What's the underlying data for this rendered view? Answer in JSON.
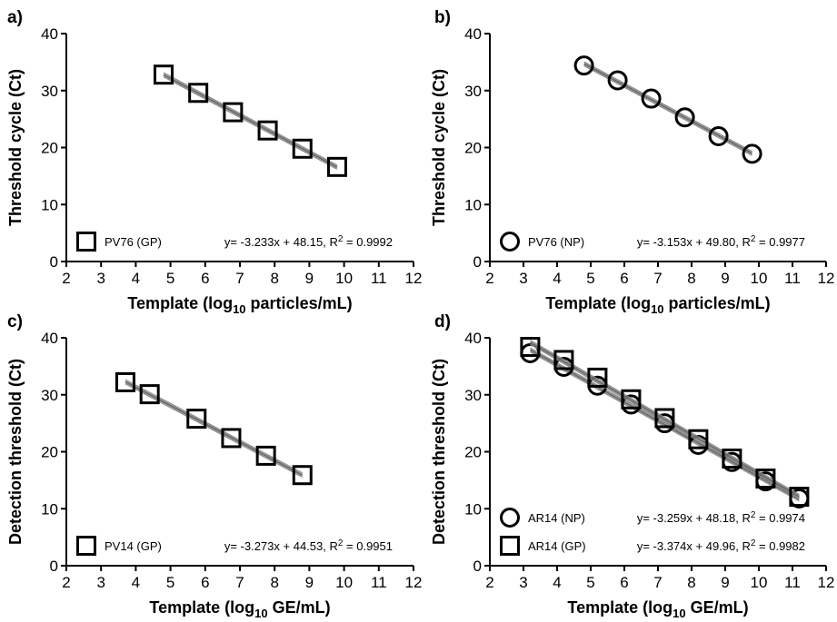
{
  "chart_data": [
    {
      "panel": "a)",
      "type": "scatter",
      "xlabel": "Template (log",
      "xlabel_sub": "10",
      "xlabel_tail": " particles/mL)",
      "ylabel": "Threshold cycle (Ct)",
      "xlim": [
        2,
        12
      ],
      "ylim": [
        0,
        40
      ],
      "x_ticks": [
        2,
        3,
        4,
        5,
        6,
        7,
        8,
        9,
        10,
        11,
        12
      ],
      "y_ticks": [
        0,
        10,
        20,
        30,
        40
      ],
      "series": [
        {
          "name": "PV76 (GP)",
          "marker": "square",
          "equation": "y= -3.233x + 48.15, R",
          "r2_value": " = 0.9992",
          "x": [
            4.8,
            5.8,
            6.8,
            7.8,
            8.8,
            9.8
          ],
          "y": [
            32.8,
            29.6,
            26.2,
            23.0,
            19.8,
            16.6
          ]
        }
      ]
    },
    {
      "panel": "b)",
      "type": "scatter",
      "xlabel": "Template (log",
      "xlabel_sub": "10",
      "xlabel_tail": " particles/mL)",
      "ylabel": "Threshold cycle (Ct)",
      "xlim": [
        2,
        12
      ],
      "ylim": [
        0,
        40
      ],
      "x_ticks": [
        2,
        3,
        4,
        5,
        6,
        7,
        8,
        9,
        10,
        11,
        12
      ],
      "y_ticks": [
        0,
        10,
        20,
        30,
        40
      ],
      "series": [
        {
          "name": "PV76 (NP)",
          "marker": "circle",
          "equation": "y= -3.153x + 49.80, R",
          "r2_value": " = 0.9977",
          "x": [
            4.8,
            5.8,
            6.8,
            7.8,
            8.8,
            9.8
          ],
          "y": [
            34.4,
            31.8,
            28.6,
            25.3,
            22.0,
            18.9
          ]
        }
      ]
    },
    {
      "panel": "c)",
      "type": "scatter",
      "xlabel": "Template (log",
      "xlabel_sub": "10",
      "xlabel_tail": " GE/mL)",
      "ylabel": "Detection threshold (Ct)",
      "xlim": [
        2,
        12
      ],
      "ylim": [
        0,
        40
      ],
      "x_ticks": [
        2,
        3,
        4,
        5,
        6,
        7,
        8,
        9,
        10,
        11,
        12
      ],
      "y_ticks": [
        0,
        10,
        20,
        30,
        40
      ],
      "series": [
        {
          "name": "PV14 (GP)",
          "marker": "square",
          "equation": "y= -3.273x + 44.53, R",
          "r2_value": " = 0.9951",
          "x": [
            3.7,
            4.4,
            5.75,
            6.75,
            7.75,
            8.8
          ],
          "y": [
            32.2,
            30.1,
            25.8,
            22.4,
            19.3,
            15.9
          ]
        }
      ]
    },
    {
      "panel": "d)",
      "type": "scatter",
      "xlabel": "Template (log",
      "xlabel_sub": "10",
      "xlabel_tail": " GE/mL)",
      "ylabel": "Detection threshold (Ct)",
      "xlim": [
        2,
        12
      ],
      "ylim": [
        0,
        40
      ],
      "x_ticks": [
        2,
        3,
        4,
        5,
        6,
        7,
        8,
        9,
        10,
        11,
        12
      ],
      "y_ticks": [
        0,
        10,
        20,
        30,
        40
      ],
      "series": [
        {
          "name": "AR14 (NP)",
          "marker": "circle",
          "equation": "y= -3.259x + 48.18, R",
          "r2_value": " = 0.9974",
          "x": [
            3.2,
            4.2,
            5.2,
            6.2,
            7.2,
            8.2,
            9.2,
            10.2,
            11.2
          ],
          "y": [
            37.3,
            34.9,
            31.6,
            28.3,
            25.0,
            21.2,
            18.2,
            14.8,
            11.8
          ]
        },
        {
          "name": "AR14 (GP)",
          "marker": "square",
          "equation": "y= -3.374x + 49.96, R",
          "r2_value": " = 0.9982",
          "x": [
            3.2,
            4.2,
            5.2,
            6.2,
            7.2,
            8.2,
            9.2,
            10.2,
            11.2
          ],
          "y": [
            38.4,
            36.1,
            33.0,
            29.2,
            25.9,
            22.2,
            18.8,
            15.3,
            12.1
          ]
        }
      ]
    }
  ],
  "r2_superscript": "2"
}
